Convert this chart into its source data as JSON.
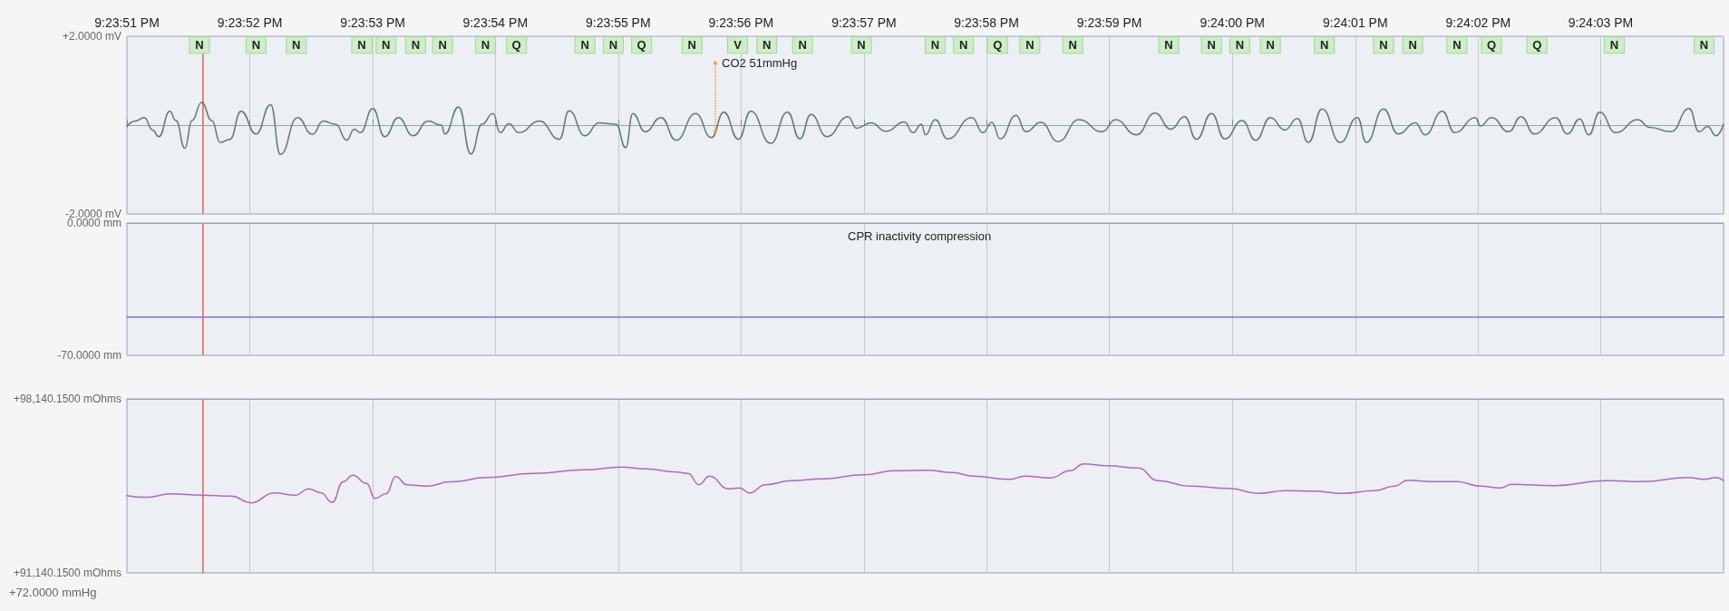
{
  "chart_data": [
    {
      "type": "line",
      "marker": "none",
      "grid": true,
      "xlim": [
        21.3975,
        21.401111
      ],
      "xticks": [
        {
          "value": 21.3975,
          "label": "9:23:51 PM"
        },
        {
          "value": 21.397778,
          "label": "9:23:52 PM"
        },
        {
          "value": 21.398056,
          "label": "9:23:53 PM"
        },
        {
          "value": 21.398333,
          "label": "9:23:54 PM"
        },
        {
          "value": 21.398611,
          "label": "9:23:55 PM"
        },
        {
          "value": 21.398889,
          "label": "9:23:56 PM"
        },
        {
          "value": 21.399167,
          "label": "9:23:57 PM"
        },
        {
          "value": 21.399444,
          "label": "9:23:58 PM"
        },
        {
          "value": 21.399722,
          "label": "9:23:59 PM"
        },
        {
          "value": 21.4,
          "label": "9:24:00 PM"
        },
        {
          "value": 21.400278,
          "label": "9:24:01 PM"
        },
        {
          "value": 21.400556,
          "label": "9:24:02 PM"
        },
        {
          "value": 21.400833,
          "label": "9:24:03 PM"
        }
      ],
      "ylim": [
        -2,
        2
      ],
      "yticks": [
        {
          "value": -2,
          "label": "-2.0000 mV"
        },
        {
          "value": 2,
          "label": "+2.0000 mV"
        }
      ],
      "x": [
        21.3975,
        21.397519,
        21.397539,
        21.397558,
        21.397572,
        21.397597,
        21.397611,
        21.397631,
        21.397647,
        21.397669,
        21.397692,
        21.397711,
        21.397733,
        21.397758,
        21.397792,
        21.397825,
        21.397847,
        21.397886,
        21.397919,
        21.397944,
        21.397972,
        21.397997,
        21.398014,
        21.398028,
        21.398056,
        21.398083,
        21.398114,
        21.398147,
        21.398181,
        21.398211,
        21.398219,
        21.39825,
        21.398278,
        21.398303,
        21.398328,
        21.398344,
        21.398364,
        21.398386,
        21.398433,
        21.398478,
        21.3985,
        21.398536,
        21.398567,
        21.398606,
        21.398628,
        21.398644,
        21.398672,
        21.398708,
        21.398742,
        21.398786,
        21.398822,
        21.39885,
        21.398883,
        21.398911,
        21.398956,
        21.398994,
        21.399022,
        21.399047,
        21.399083,
        21.399131,
        21.39915,
        21.399183,
        21.399217,
        21.399258,
        21.399278,
        21.399297,
        21.399306,
        21.399328,
        21.399356,
        21.399411,
        21.399436,
        21.399456,
        21.399475,
        21.399511,
        21.399533,
        21.399567,
        21.399606,
        21.399653,
        21.399706,
        21.399736,
        21.399783,
        21.399825,
        21.399861,
        21.399892,
        21.399919,
        21.399953,
        21.399983,
        21.400022,
        21.400053,
        21.400086,
        21.400119,
        21.400147,
        21.400172,
        21.400203,
        21.400244,
        21.400283,
        21.400303,
        21.400342,
        21.400375,
        21.400414,
        21.400436,
        21.400475,
        21.400503,
        21.40055,
        21.400561,
        21.400586,
        21.400625,
        21.400653,
        21.400683,
        21.400731,
        21.400758,
        21.400786,
        21.400806,
        21.400831,
        21.400867,
        21.400917,
        21.400944,
        21.400992,
        21.401033,
        21.401056,
        21.401075,
        21.401094,
        21.401111
      ],
      "series": [
        {
          "color": "#5b7d72",
          "values": [
            -0.03,
            0.09,
            0.17,
            -0.11,
            -0.26,
            0.31,
            0.1,
            -0.52,
            0.1,
            0.51,
            0.1,
            -0.39,
            -0.32,
            0.31,
            -0.2,
            0.46,
            -0.66,
            0.17,
            -0.21,
            0.09,
            0.02,
            -0.34,
            -0.09,
            -0.17,
            0.37,
            -0.26,
            0.17,
            -0.24,
            0.09,
            0.0,
            -0.2,
            0.41,
            -0.65,
            0.02,
            0.26,
            -0.17,
            0.03,
            -0.17,
            0.09,
            -0.32,
            0.32,
            -0.24,
            0.05,
            0.02,
            -0.51,
            0.26,
            -0.15,
            0.17,
            -0.34,
            0.26,
            -0.28,
            0.29,
            -0.32,
            0.31,
            -0.41,
            0.29,
            -0.31,
            0.24,
            -0.26,
            0.19,
            -0.07,
            0.05,
            -0.14,
            0.07,
            -0.17,
            0.02,
            -0.22,
            0.12,
            -0.31,
            0.17,
            -0.17,
            0.06,
            -0.31,
            0.22,
            -0.15,
            0.06,
            -0.37,
            0.12,
            -0.15,
            0.12,
            -0.22,
            0.27,
            -0.09,
            0.19,
            -0.32,
            0.26,
            -0.31,
            0.1,
            -0.34,
            0.17,
            -0.11,
            0.15,
            -0.39,
            0.36,
            -0.39,
            0.17,
            -0.39,
            0.36,
            -0.2,
            0.05,
            -0.22,
            0.31,
            -0.17,
            0.17,
            -0.02,
            0.17,
            -0.15,
            0.19,
            -0.2,
            0.17,
            -0.2,
            0.14,
            -0.22,
            0.29,
            -0.17,
            0.12,
            -0.05,
            -0.15,
            0.37,
            -0.15,
            -0.03,
            -0.24,
            0.02
          ]
        }
      ],
      "ref_lines": [
        {
          "axis": "x",
          "value": 21.397672,
          "color": "#e06060"
        }
      ],
      "annotations": [
        {
          "text": "N",
          "x": 21.397664
        },
        {
          "text": "N",
          "x": 21.397792
        },
        {
          "text": "N",
          "x": 21.397883
        },
        {
          "text": "N",
          "x": 21.398031
        },
        {
          "text": "N",
          "x": 21.398086
        },
        {
          "text": "N",
          "x": 21.398153
        },
        {
          "text": "N",
          "x": 21.398214
        },
        {
          "text": "N",
          "x": 21.398311
        },
        {
          "text": "Q",
          "x": 21.398381
        },
        {
          "text": "N",
          "x": 21.398536
        },
        {
          "text": "N",
          "x": 21.3986
        },
        {
          "text": "Q",
          "x": 21.398664
        },
        {
          "text": "N",
          "x": 21.398778
        },
        {
          "text": "V",
          "x": 21.398881
        },
        {
          "text": "N",
          "x": 21.398947
        },
        {
          "text": "N",
          "x": 21.399028
        },
        {
          "text": "N",
          "x": 21.399161
        },
        {
          "text": "N",
          "x": 21.399328
        },
        {
          "text": "N",
          "x": 21.399392
        },
        {
          "text": "Q",
          "x": 21.399469
        },
        {
          "text": "N",
          "x": 21.399542
        },
        {
          "text": "N",
          "x": 21.399639
        },
        {
          "text": "N",
          "x": 21.399856
        },
        {
          "text": "N",
          "x": 21.399953
        },
        {
          "text": "N",
          "x": 21.400017
        },
        {
          "text": "N",
          "x": 21.400086
        },
        {
          "text": "N",
          "x": 21.400208
        },
        {
          "text": "N",
          "x": 21.400342
        },
        {
          "text": "N",
          "x": 21.400408
        },
        {
          "text": "N",
          "x": 21.400508
        },
        {
          "text": "Q",
          "x": 21.400586
        },
        {
          "text": "Q",
          "x": 21.400689
        },
        {
          "text": "N",
          "x": 21.400864
        },
        {
          "text": "N",
          "x": 21.401067
        },
        {
          "text": "CO2 51mmHg",
          "x": 21.398831,
          "y": -0.14
        }
      ]
    },
    {
      "type": "line",
      "marker": "none",
      "grid": true,
      "tick_labels": "y",
      "xlim": [
        21.3975,
        21.401111
      ],
      "xticks": [
        21.3975,
        21.397778,
        21.398056,
        21.398333,
        21.398611,
        21.398889,
        21.399167,
        21.399444,
        21.399722,
        21.4,
        21.400278,
        21.400556,
        21.400833
      ],
      "ylim": [
        -70,
        0
      ],
      "yticks": [
        {
          "value": -70,
          "label": "-70.0000 mm"
        },
        {
          "value": 0,
          "label": "0.0000 mm"
        }
      ],
      "x": [
        21.3975,
        21.401111
      ],
      "series": [
        {
          "color": "#7878d0",
          "values": [
            -49.8,
            -49.8
          ]
        }
      ],
      "ref_lines": [
        {
          "axis": "x",
          "value": 21.397672,
          "color": "#e06060"
        }
      ],
      "annotations": [
        "CPR inactivity compression"
      ]
    },
    {
      "type": "line",
      "marker": "none",
      "grid": true,
      "tick_labels": "y",
      "xlim": [
        21.3975,
        21.401111
      ],
      "xticks": [
        21.3975,
        21.397778,
        21.398056,
        21.398333,
        21.398611,
        21.398889,
        21.399167,
        21.399444,
        21.399722,
        21.4,
        21.400278,
        21.400556,
        21.400833
      ],
      "ylim": [
        91140.15,
        98140.15
      ],
      "yticks": [
        {
          "value": 91140.15,
          "label": "+91,140.1500 mOhms"
        },
        {
          "value": 98140.15,
          "label": "+98,140.1500 mOhms"
        }
      ],
      "x": [
        21.3975,
        21.397542,
        21.3976,
        21.397669,
        21.397736,
        21.397781,
        21.397833,
        21.397881,
        21.397911,
        21.397939,
        21.397964,
        21.397989,
        21.398011,
        21.398042,
        21.398061,
        21.398086,
        21.398108,
        21.398133,
        21.398178,
        21.398231,
        21.398314,
        21.398419,
        21.398536,
        21.398617,
        21.398675,
        21.398744,
        21.398769,
        21.398794,
        21.398817,
        21.398861,
        21.398886,
        21.398908,
        21.398944,
        21.399003,
        21.399072,
        21.399167,
        21.399236,
        21.399311,
        21.399367,
        21.399414,
        21.399494,
        21.399531,
        21.399589,
        21.399633,
        21.399664,
        21.399717,
        21.399786,
        21.399833,
        21.399903,
        21.399994,
        21.400058,
        21.400122,
        21.400181,
        21.40025,
        21.400322,
        21.400367,
        21.400397,
        21.40045,
        21.400508,
        21.400561,
        21.400606,
        21.400631,
        21.400728,
        21.400844,
        21.400928,
        21.401031,
        21.401067,
        21.401094,
        21.401111
      ],
      "series": [
        {
          "color": "#b565c0",
          "values": [
            94250,
            94180,
            94320,
            94270,
            94230,
            93960,
            94360,
            94270,
            94520,
            94360,
            93980,
            94800,
            95070,
            94740,
            94140,
            94320,
            95010,
            94690,
            94630,
            94800,
            94980,
            95140,
            95290,
            95400,
            95320,
            95200,
            95140,
            94690,
            95030,
            94520,
            94560,
            94360,
            94690,
            94850,
            94920,
            95090,
            95250,
            95270,
            95180,
            95030,
            94900,
            95030,
            94960,
            95250,
            95520,
            95450,
            95360,
            94850,
            94630,
            94540,
            94340,
            94450,
            94430,
            94340,
            94450,
            94630,
            94870,
            94810,
            94810,
            94630,
            94560,
            94700,
            94650,
            94850,
            94810,
            94980,
            94900,
            94980,
            94850
          ]
        }
      ],
      "ref_lines": [
        {
          "axis": "x",
          "value": 21.397672,
          "color": "#e06060"
        }
      ],
      "annotations": [
        "+72.0000 mmHg"
      ]
    }
  ]
}
